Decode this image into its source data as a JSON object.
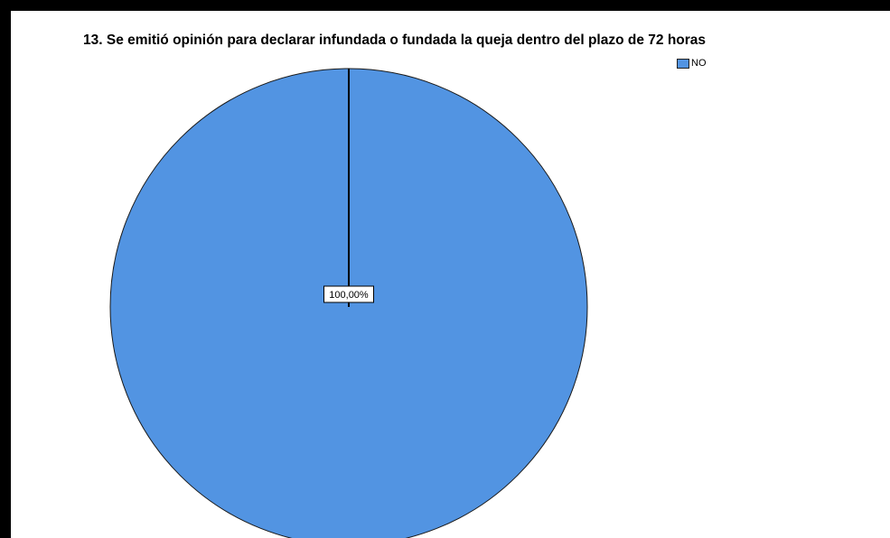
{
  "chart_data": {
    "type": "pie",
    "title": "13. Se emitió opinión para declarar infundada o fundada la queja dentro del plazo de 72 horas",
    "categories": [
      "NO"
    ],
    "values": [
      100
    ],
    "data_labels": [
      "100,00%"
    ],
    "colors": [
      "#5294e2"
    ],
    "legend": {
      "position": "top-right",
      "entries": [
        "NO"
      ]
    }
  }
}
